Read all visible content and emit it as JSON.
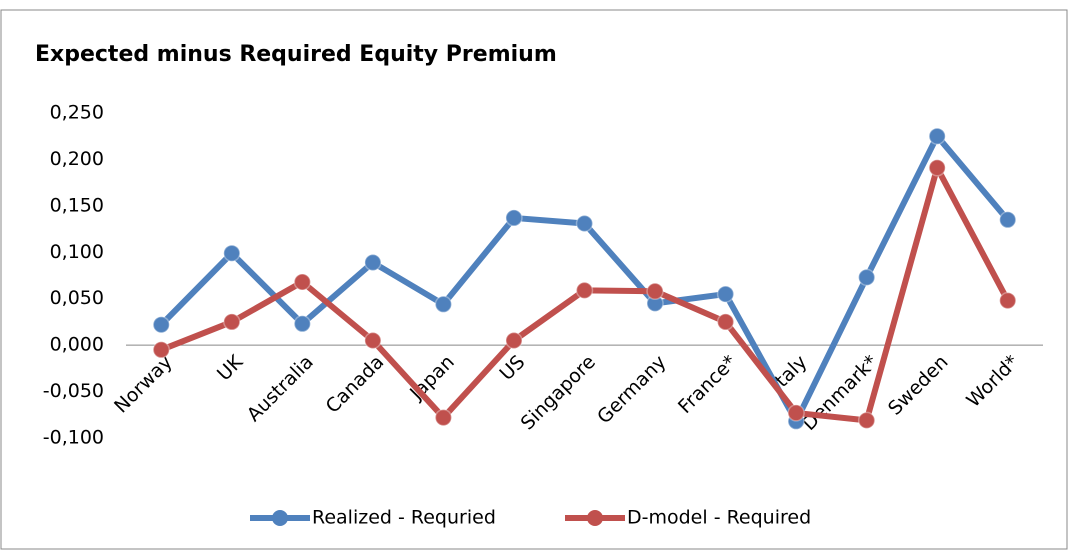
{
  "chart_data": {
    "type": "line",
    "title": "Expected minus Required Equity Premium",
    "categories": [
      "Norway",
      "UK",
      "Australia",
      "Canada",
      "Japan",
      "US",
      "Singapore",
      "Germany",
      "France*",
      "Italy",
      "Denmark*",
      "Sweden",
      "World*"
    ],
    "series": [
      {
        "name": "Realized - Requried",
        "color": "#4f81bd",
        "values": [
          0.022,
          0.099,
          0.023,
          0.089,
          0.044,
          0.137,
          0.131,
          0.045,
          0.055,
          -0.082,
          0.073,
          0.225,
          0.135
        ]
      },
      {
        "name": "D-model - Required",
        "color": "#c0504d",
        "values": [
          -0.005,
          0.025,
          0.068,
          0.005,
          -0.078,
          0.005,
          0.059,
          0.058,
          0.025,
          -0.073,
          -0.081,
          0.191,
          0.048
        ]
      }
    ],
    "ylim": [
      -0.1,
      0.25
    ],
    "yticks": [
      {
        "value": -0.1,
        "label": "-0,100"
      },
      {
        "value": -0.05,
        "label": "-0,050"
      },
      {
        "value": 0,
        "label": "0,000"
      },
      {
        "value": 0.05,
        "label": "0,050"
      },
      {
        "value": 0.1,
        "label": "0,100"
      },
      {
        "value": 0.15,
        "label": "0,150"
      },
      {
        "value": 0.2,
        "label": "0,200"
      },
      {
        "value": 0.25,
        "label": "0,250"
      }
    ],
    "grid": false,
    "legend": "bottom"
  }
}
